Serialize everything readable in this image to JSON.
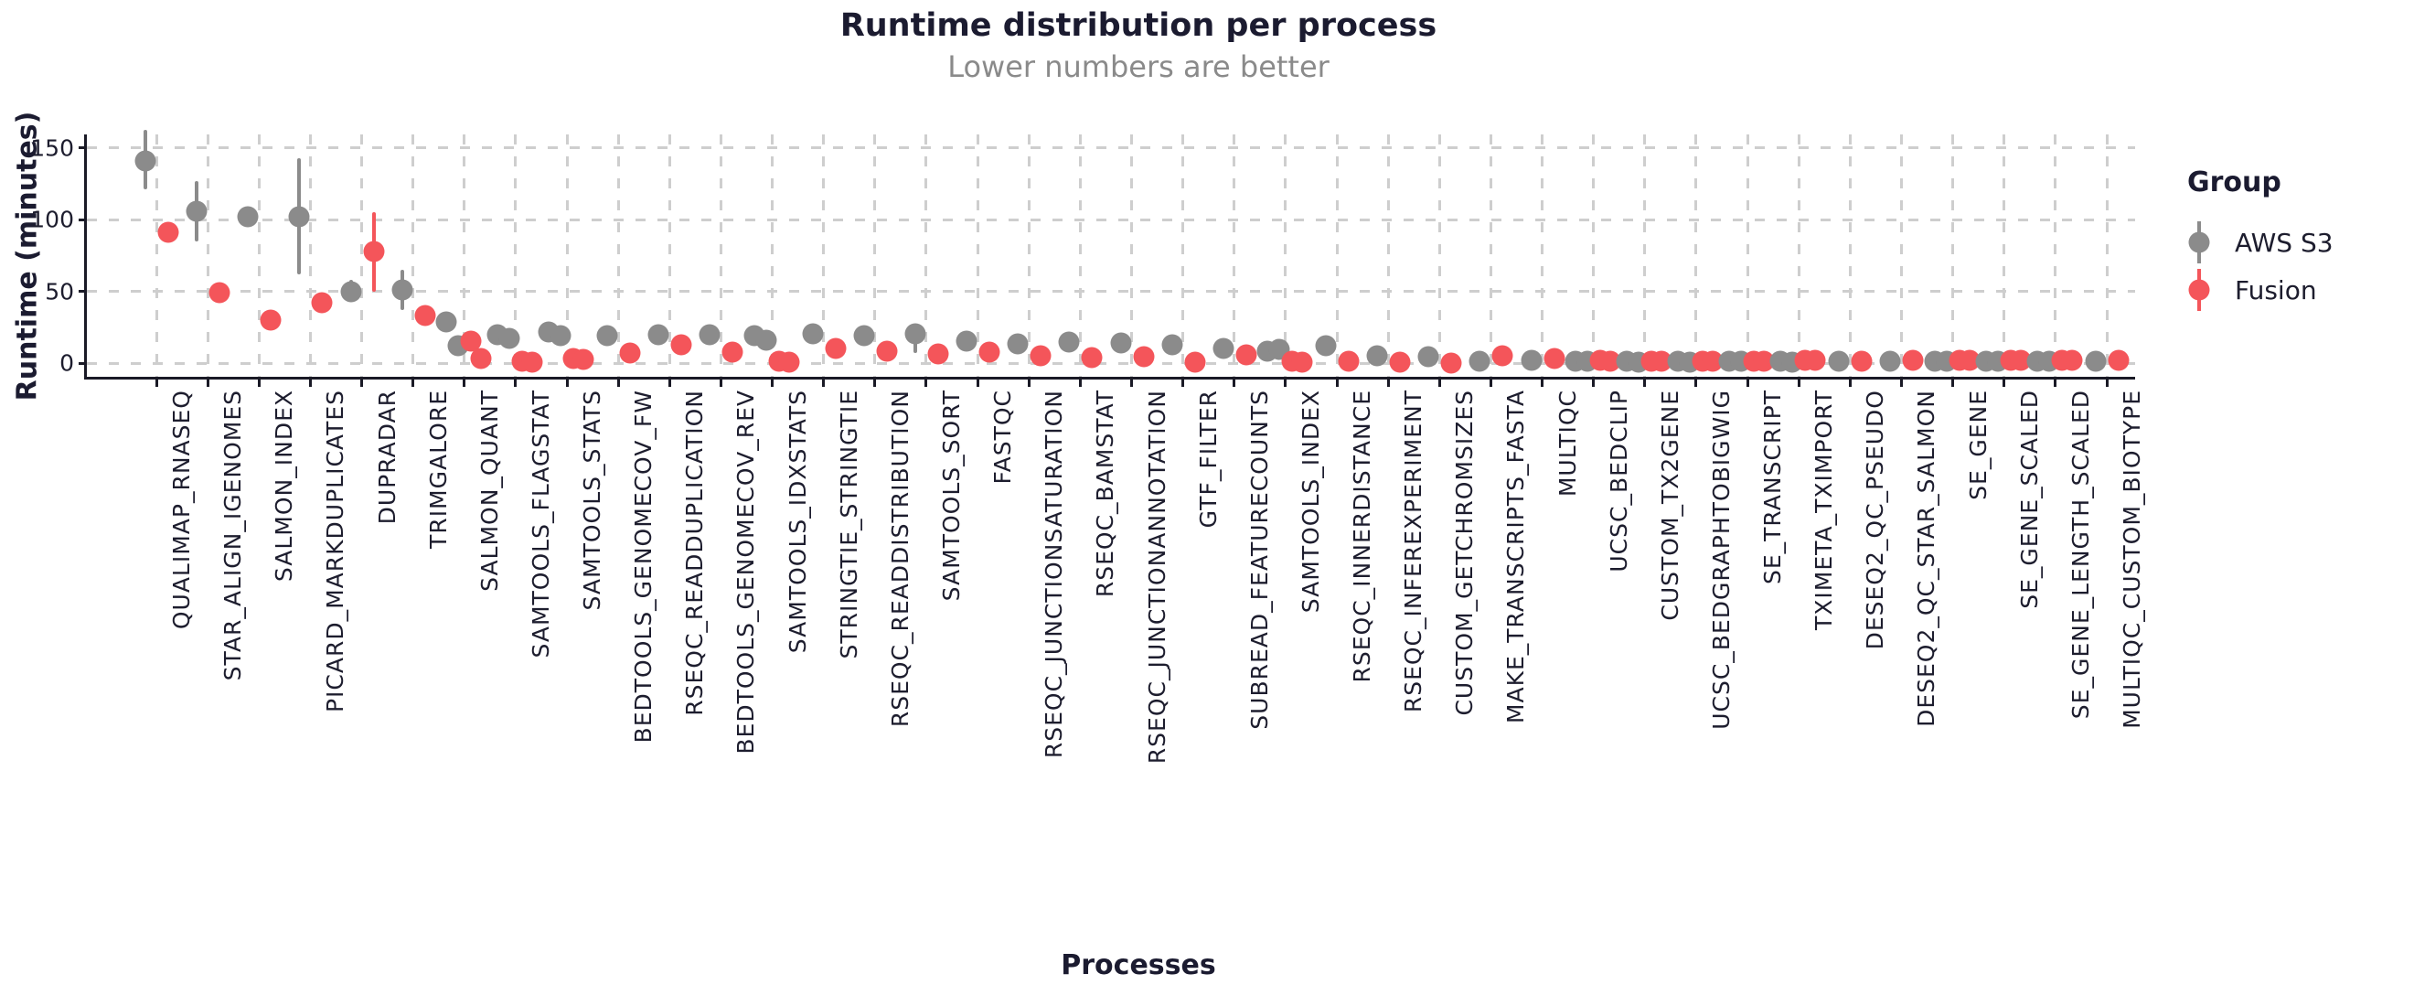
{
  "title": "Runtime distribution per process",
  "subtitle": "Lower numbers are better",
  "chart_data": {
    "type": "pointrange-dot",
    "title": "Runtime distribution per process",
    "subtitle": "Lower numbers are better",
    "xlabel": "Processes",
    "ylabel": "Runtime (minutes)",
    "legend_title": "Group",
    "legend_position": "right",
    "grid": "dashed",
    "ylim": [
      0,
      165
    ],
    "y_ticks": [
      0,
      50,
      100,
      150
    ],
    "text_color": "#1d1d2e",
    "grid_color": "#cecece",
    "groups": [
      {
        "name": "AWS S3",
        "key": "aws",
        "color": "#8b8b8b"
      },
      {
        "name": "Fusion",
        "key": "fusion",
        "color": "#f4555a"
      }
    ],
    "series": [
      {
        "name": "QUALIMAP_RNASEQ",
        "aws": [
          {
            "v": 141,
            "lo": 121,
            "hi": 163
          }
        ],
        "fusion": [
          {
            "v": 91,
            "lo": 84,
            "hi": 98
          }
        ]
      },
      {
        "name": "STAR_ALIGN_IGENOMES",
        "aws": [
          {
            "v": 106,
            "lo": 85,
            "hi": 127
          }
        ],
        "fusion": [
          {
            "v": 49
          }
        ]
      },
      {
        "name": "SALMON_INDEX",
        "aws": [
          {
            "v": 102
          }
        ],
        "fusion": [
          {
            "v": 30
          }
        ]
      },
      {
        "name": "PICARD_MARKDUPLICATES",
        "aws": [
          {
            "v": 102,
            "lo": 62,
            "hi": 143
          }
        ],
        "fusion": [
          {
            "v": 42
          }
        ]
      },
      {
        "name": "DUPRADAR",
        "aws": [
          {
            "v": 50,
            "lo": 43,
            "hi": 58
          }
        ],
        "fusion": [
          {
            "v": 78,
            "lo": 50,
            "hi": 105
          }
        ]
      },
      {
        "name": "TRIMGALORE",
        "aws": [
          {
            "v": 51,
            "lo": 37,
            "hi": 65
          }
        ],
        "fusion": [
          {
            "v": 33
          }
        ]
      },
      {
        "name": "SALMON_QUANT",
        "aws": [
          {
            "v": 29
          },
          {
            "v": 12
          }
        ],
        "fusion": [
          {
            "v": 15
          },
          {
            "v": 3
          }
        ]
      },
      {
        "name": "SAMTOOLS_FLAGSTAT",
        "aws": [
          {
            "v": 20
          },
          {
            "v": 17
          }
        ],
        "fusion": [
          {
            "v": 1
          },
          {
            "v": 0.5
          }
        ]
      },
      {
        "name": "SAMTOOLS_STATS",
        "aws": [
          {
            "v": 22
          },
          {
            "v": 19
          }
        ],
        "fusion": [
          {
            "v": 3
          },
          {
            "v": 2.5
          }
        ]
      },
      {
        "name": "BEDTOOLS_GENOMECOV_FW",
        "aws": [
          {
            "v": 19
          }
        ],
        "fusion": [
          {
            "v": 7
          }
        ]
      },
      {
        "name": "RSEQC_READDUPLICATION",
        "aws": [
          {
            "v": 20
          }
        ],
        "fusion": [
          {
            "v": 13
          }
        ]
      },
      {
        "name": "BEDTOOLS_GENOMECOV_REV",
        "aws": [
          {
            "v": 20
          }
        ],
        "fusion": [
          {
            "v": 7.5
          }
        ]
      },
      {
        "name": "SAMTOOLS_IDXSTATS",
        "aws": [
          {
            "v": 19
          },
          {
            "v": 16
          }
        ],
        "fusion": [
          {
            "v": 1.5
          },
          {
            "v": 0.5
          }
        ]
      },
      {
        "name": "STRINGTIE_STRINGTIE",
        "aws": [
          {
            "v": 20.5
          }
        ],
        "fusion": [
          {
            "v": 10
          }
        ]
      },
      {
        "name": "RSEQC_READDISTRIBUTION",
        "aws": [
          {
            "v": 19
          }
        ],
        "fusion": [
          {
            "v": 8
          }
        ]
      },
      {
        "name": "SAMTOOLS_SORT",
        "aws": [
          {
            "v": 20.5,
            "lo": 7,
            "hi": 27
          }
        ],
        "fusion": [
          {
            "v": 6.5
          }
        ]
      },
      {
        "name": "FASTQC",
        "aws": [
          {
            "v": 15
          }
        ],
        "fusion": [
          {
            "v": 7.5
          }
        ]
      },
      {
        "name": "RSEQC_JUNCTIONSATURATION",
        "aws": [
          {
            "v": 13.5
          }
        ],
        "fusion": [
          {
            "v": 5
          }
        ]
      },
      {
        "name": "RSEQC_BAMSTAT",
        "aws": [
          {
            "v": 14.5
          }
        ],
        "fusion": [
          {
            "v": 4
          }
        ]
      },
      {
        "name": "RSEQC_JUNCTIONANNOTATION",
        "aws": [
          {
            "v": 14
          }
        ],
        "fusion": [
          {
            "v": 4.5
          }
        ]
      },
      {
        "name": "GTF_FILTER",
        "aws": [
          {
            "v": 12.5
          }
        ],
        "fusion": [
          {
            "v": 0.5
          }
        ]
      },
      {
        "name": "SUBREAD_FEATURECOUNTS",
        "aws": [
          {
            "v": 10.5
          }
        ],
        "fusion": [
          {
            "v": 6
          }
        ]
      },
      {
        "name": "SAMTOOLS_INDEX",
        "aws": [
          {
            "v": 8
          },
          {
            "v": 9.5
          }
        ],
        "fusion": [
          {
            "v": 1
          },
          {
            "v": 0.6
          }
        ]
      },
      {
        "name": "RSEQC_INNERDISTANCE",
        "aws": [
          {
            "v": 12
          }
        ],
        "fusion": [
          {
            "v": 1.2
          }
        ]
      },
      {
        "name": "RSEQC_INFEREXPERIMENT",
        "aws": [
          {
            "v": 5
          }
        ],
        "fusion": [
          {
            "v": 0.5
          }
        ]
      },
      {
        "name": "CUSTOM_GETCHROMSIZES",
        "aws": [
          {
            "v": 4.5
          }
        ],
        "fusion": [
          {
            "v": 0.3
          }
        ]
      },
      {
        "name": "MAKE_TRANSCRIPTS_FASTA",
        "aws": [
          {
            "v": 1.5
          }
        ],
        "fusion": [
          {
            "v": 5
          }
        ]
      },
      {
        "name": "MULTIQC",
        "aws": [
          {
            "v": 2
          }
        ],
        "fusion": [
          {
            "v": 3
          }
        ]
      },
      {
        "name": "UCSC_BEDCLIP",
        "aws": [
          {
            "v": 1
          },
          {
            "v": 1
          }
        ],
        "fusion": [
          {
            "v": 2
          },
          {
            "v": 1.5
          }
        ]
      },
      {
        "name": "CUSTOM_TX2GENE",
        "aws": [
          {
            "v": 1
          },
          {
            "v": 0.8
          }
        ],
        "fusion": [
          {
            "v": 1.5
          },
          {
            "v": 1.3
          }
        ]
      },
      {
        "name": "UCSC_BEDGRAPHTOBIGWIG",
        "aws": [
          {
            "v": 1
          },
          {
            "v": 0.8
          }
        ],
        "fusion": [
          {
            "v": 1.3
          },
          {
            "v": 1.3
          }
        ]
      },
      {
        "name": "SE_TRANSCRIPT",
        "aws": [
          {
            "v": 1
          },
          {
            "v": 1
          }
        ],
        "fusion": [
          {
            "v": 1.5
          },
          {
            "v": 1.3
          }
        ]
      },
      {
        "name": "TXIMETA_TXIMPORT",
        "aws": [
          {
            "v": 1
          },
          {
            "v": 0.6
          }
        ],
        "fusion": [
          {
            "v": 1.8
          },
          {
            "v": 1.8
          }
        ]
      },
      {
        "name": "DESEQ2_QC_PSEUDO",
        "aws": [
          {
            "v": 1
          }
        ],
        "fusion": [
          {
            "v": 1.3
          }
        ]
      },
      {
        "name": "DESEQ2_QC_STAR_SALMON",
        "aws": [
          {
            "v": 1.3
          }
        ],
        "fusion": [
          {
            "v": 1.7
          }
        ]
      },
      {
        "name": "SE_GENE",
        "aws": [
          {
            "v": 1.3
          },
          {
            "v": 1.3
          }
        ],
        "fusion": [
          {
            "v": 2
          },
          {
            "v": 2
          }
        ]
      },
      {
        "name": "SE_GENE_SCALED",
        "aws": [
          {
            "v": 1.3
          },
          {
            "v": 1.3
          }
        ],
        "fusion": [
          {
            "v": 2
          },
          {
            "v": 2
          }
        ]
      },
      {
        "name": "SE_GENE_LENGTH_SCALED",
        "aws": [
          {
            "v": 1.3
          },
          {
            "v": 1
          }
        ],
        "fusion": [
          {
            "v": 2
          },
          {
            "v": 2
          }
        ]
      },
      {
        "name": "MULTIQC_CUSTOM_BIOTYPE",
        "aws": [
          {
            "v": 1.3
          }
        ],
        "fusion": [
          {
            "v": 1.7
          }
        ]
      }
    ]
  }
}
